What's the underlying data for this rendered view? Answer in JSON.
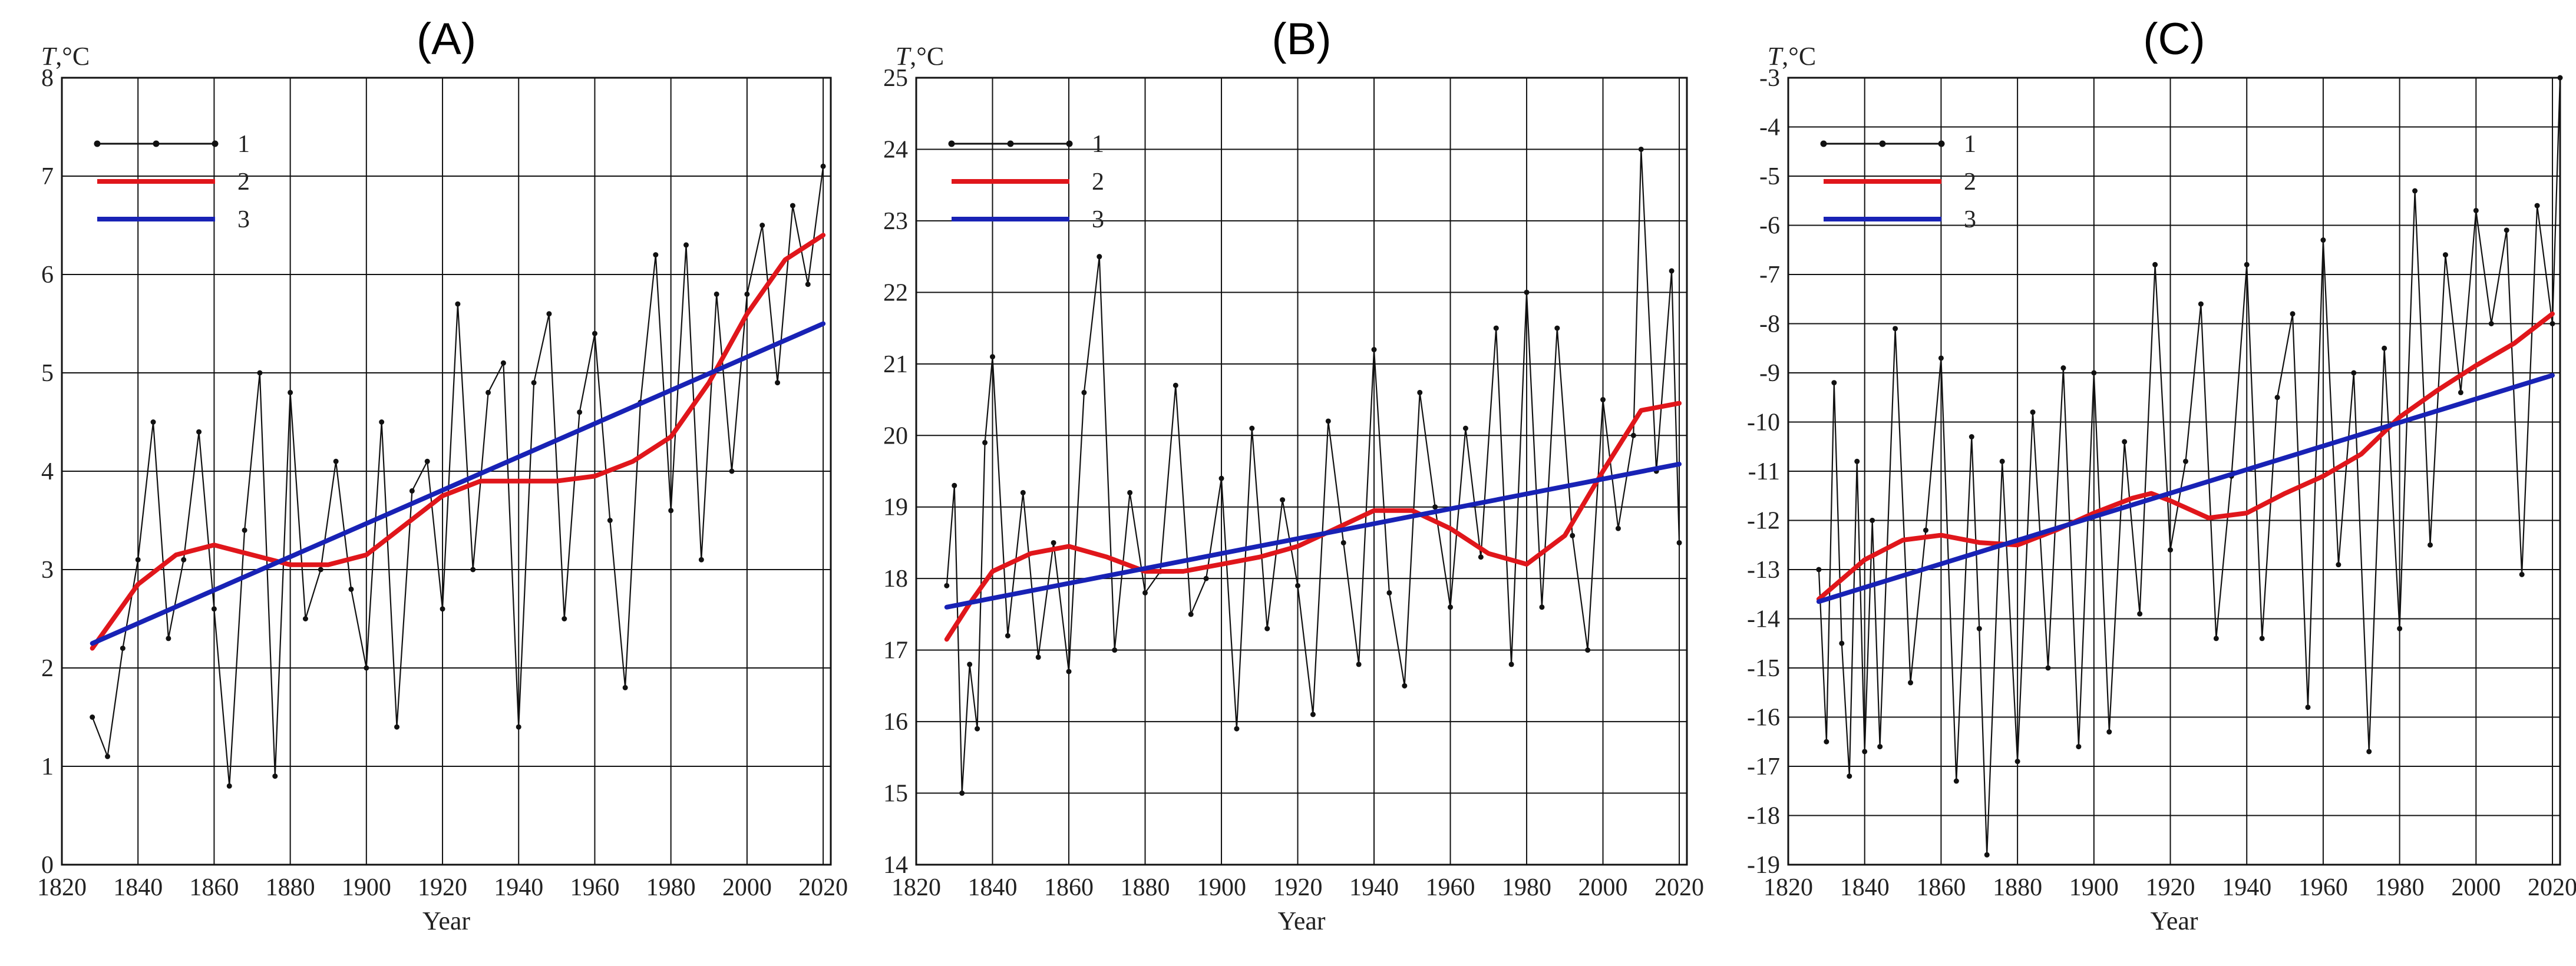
{
  "chart_data": [
    {
      "panel": "(A)",
      "type": "line",
      "title": "(A)",
      "xlabel": "Year",
      "ylabel": "T,°C",
      "xlim": [
        1820,
        2022
      ],
      "ylim": [
        0,
        8
      ],
      "x_ticks": [
        1820,
        1840,
        1860,
        1880,
        1900,
        1920,
        1940,
        1960,
        1980,
        2000,
        2020
      ],
      "y_ticks": [
        0,
        1,
        2,
        3,
        4,
        5,
        6,
        7,
        8
      ],
      "grid": true,
      "legend_position": "top-left",
      "legend": [
        "1",
        "2",
        "3"
      ],
      "series": [
        {
          "name": "1",
          "style": "observed annual mean (black line with dots)",
          "x": [
            1828,
            1832,
            1836,
            1840,
            1844,
            1848,
            1852,
            1856,
            1860,
            1864,
            1868,
            1872,
            1876,
            1880,
            1884,
            1888,
            1892,
            1896,
            1900,
            1904,
            1908,
            1912,
            1916,
            1920,
            1924,
            1928,
            1932,
            1936,
            1940,
            1944,
            1948,
            1952,
            1956,
            1960,
            1964,
            1968,
            1972,
            1976,
            1980,
            1984,
            1988,
            1992,
            1996,
            2000,
            2004,
            2008,
            2012,
            2016,
            2020
          ],
          "values": [
            1.5,
            1.1,
            2.2,
            3.1,
            4.5,
            2.3,
            3.1,
            4.4,
            2.6,
            0.8,
            3.4,
            5.0,
            0.9,
            4.8,
            2.5,
            3.0,
            4.1,
            2.8,
            2.0,
            4.5,
            1.4,
            3.8,
            4.1,
            2.6,
            5.7,
            3.0,
            4.8,
            5.1,
            1.4,
            4.9,
            5.6,
            2.5,
            4.6,
            5.4,
            3.5,
            1.8,
            4.7,
            6.2,
            3.6,
            6.3,
            3.1,
            5.8,
            4.0,
            5.8,
            6.5,
            4.9,
            6.7,
            5.9,
            7.1
          ]
        },
        {
          "name": "2",
          "style": "smoothed curve (red)",
          "x": [
            1828,
            1840,
            1850,
            1860,
            1870,
            1880,
            1890,
            1900,
            1910,
            1920,
            1930,
            1940,
            1950,
            1960,
            1970,
            1980,
            1990,
            2000,
            2010,
            2020
          ],
          "values": [
            2.2,
            2.85,
            3.15,
            3.25,
            3.15,
            3.05,
            3.05,
            3.15,
            3.45,
            3.75,
            3.9,
            3.9,
            3.9,
            3.95,
            4.1,
            4.35,
            4.9,
            5.6,
            6.15,
            6.4
          ]
        },
        {
          "name": "3",
          "style": "linear trend (blue)",
          "x": [
            1828,
            2020
          ],
          "values": [
            2.25,
            5.5
          ]
        }
      ]
    },
    {
      "panel": "(B)",
      "type": "line",
      "title": "(B)",
      "xlabel": "Year",
      "ylabel": "T,°C",
      "xlim": [
        1820,
        2022
      ],
      "ylim": [
        14,
        25
      ],
      "x_ticks": [
        1820,
        1840,
        1860,
        1880,
        1900,
        1920,
        1940,
        1960,
        1980,
        2000,
        2020
      ],
      "y_ticks": [
        14,
        15,
        16,
        17,
        18,
        19,
        20,
        21,
        22,
        23,
        24,
        25
      ],
      "grid": true,
      "legend_position": "top-left",
      "legend": [
        "1",
        "2",
        "3"
      ],
      "series": [
        {
          "name": "1",
          "style": "observed annual mean (black line with dots)",
          "x": [
            1828,
            1830,
            1832,
            1834,
            1836,
            1838,
            1840,
            1844,
            1848,
            1852,
            1856,
            1860,
            1864,
            1868,
            1872,
            1876,
            1880,
            1884,
            1888,
            1892,
            1896,
            1900,
            1904,
            1908,
            1912,
            1916,
            1920,
            1924,
            1928,
            1932,
            1936,
            1940,
            1944,
            1948,
            1952,
            1956,
            1960,
            1964,
            1968,
            1972,
            1976,
            1980,
            1984,
            1988,
            1992,
            1996,
            2000,
            2004,
            2008,
            2010,
            2014,
            2018,
            2020
          ],
          "values": [
            17.9,
            19.3,
            15.0,
            16.8,
            15.9,
            19.9,
            21.1,
            17.2,
            19.2,
            16.9,
            18.5,
            16.7,
            20.6,
            22.5,
            17.0,
            19.2,
            17.8,
            18.1,
            20.7,
            17.5,
            18.0,
            19.4,
            15.9,
            20.1,
            17.3,
            19.1,
            17.9,
            16.1,
            20.2,
            18.5,
            16.8,
            21.2,
            17.8,
            16.5,
            20.6,
            19.0,
            17.6,
            20.1,
            18.3,
            21.5,
            16.8,
            22.0,
            17.6,
            21.5,
            18.6,
            17.0,
            20.5,
            18.7,
            20.0,
            24.0,
            19.5,
            22.3,
            18.5
          ]
        },
        {
          "name": "2",
          "style": "smoothed curve (red)",
          "x": [
            1828,
            1834,
            1840,
            1850,
            1860,
            1870,
            1880,
            1890,
            1900,
            1910,
            1920,
            1930,
            1940,
            1950,
            1960,
            1970,
            1980,
            1990,
            2000,
            2010,
            2020
          ],
          "values": [
            17.15,
            17.65,
            18.1,
            18.35,
            18.45,
            18.3,
            18.1,
            18.1,
            18.2,
            18.3,
            18.45,
            18.7,
            18.95,
            18.95,
            18.7,
            18.35,
            18.2,
            18.6,
            19.5,
            20.35,
            20.45
          ]
        },
        {
          "name": "3",
          "style": "linear trend (blue)",
          "x": [
            1828,
            2020
          ],
          "values": [
            17.6,
            19.6
          ]
        }
      ]
    },
    {
      "panel": "(C)",
      "type": "line",
      "title": "(C)",
      "xlabel": "Year",
      "ylabel": "T,°C",
      "xlim": [
        1820,
        2022
      ],
      "ylim": [
        -19,
        -3
      ],
      "x_ticks": [
        1820,
        1840,
        1860,
        1880,
        1900,
        1920,
        1940,
        1960,
        1980,
        2000,
        2020
      ],
      "y_ticks": [
        -19,
        -18,
        -17,
        -16,
        -15,
        -14,
        -13,
        -12,
        -11,
        -10,
        -9,
        -8,
        -7,
        -6,
        -5,
        -4,
        -3
      ],
      "grid": true,
      "legend_position": "top-left",
      "legend": [
        "1",
        "2",
        "3"
      ],
      "series": [
        {
          "name": "1",
          "style": "observed annual mean (black line with dots)",
          "x": [
            1828,
            1830,
            1832,
            1834,
            1836,
            1838,
            1840,
            1842,
            1844,
            1848,
            1852,
            1856,
            1860,
            1864,
            1868,
            1870,
            1872,
            1876,
            1880,
            1884,
            1888,
            1892,
            1896,
            1900,
            1904,
            1908,
            1912,
            1916,
            1920,
            1924,
            1928,
            1932,
            1936,
            1940,
            1944,
            1948,
            1952,
            1956,
            1960,
            1964,
            1968,
            1972,
            1976,
            1980,
            1984,
            1988,
            1992,
            1996,
            2000,
            2004,
            2008,
            2012,
            2016,
            2020,
            2022
          ],
          "values": [
            -13.0,
            -16.5,
            -9.2,
            -14.5,
            -17.2,
            -10.8,
            -16.7,
            -12.0,
            -16.6,
            -8.1,
            -15.3,
            -12.2,
            -8.7,
            -17.3,
            -10.3,
            -14.2,
            -18.8,
            -10.8,
            -16.9,
            -9.8,
            -15.0,
            -8.9,
            -16.6,
            -9.0,
            -16.3,
            -10.4,
            -13.9,
            -6.8,
            -12.6,
            -10.8,
            -7.6,
            -14.4,
            -11.1,
            -6.8,
            -14.4,
            -9.5,
            -7.8,
            -15.8,
            -6.3,
            -12.9,
            -9.0,
            -16.7,
            -8.5,
            -14.2,
            -5.3,
            -12.5,
            -6.6,
            -9.4,
            -5.7,
            -8.0,
            -6.1,
            -13.1,
            -5.6,
            -8.0,
            -3.0
          ]
        },
        {
          "name": "2",
          "style": "smoothed curve (red)",
          "x": [
            1828,
            1840,
            1850,
            1860,
            1870,
            1880,
            1890,
            1900,
            1910,
            1915,
            1920,
            1930,
            1940,
            1950,
            1960,
            1970,
            1980,
            1990,
            2000,
            2010,
            2020
          ],
          "values": [
            -13.6,
            -12.8,
            -12.4,
            -12.3,
            -12.45,
            -12.5,
            -12.2,
            -11.85,
            -11.55,
            -11.45,
            -11.6,
            -11.95,
            -11.85,
            -11.45,
            -11.1,
            -10.65,
            -9.9,
            -9.35,
            -8.85,
            -8.4,
            -7.8
          ]
        },
        {
          "name": "3",
          "style": "linear trend (blue)",
          "x": [
            1828,
            2020
          ],
          "values": [
            -13.65,
            -9.05
          ]
        }
      ]
    }
  ]
}
